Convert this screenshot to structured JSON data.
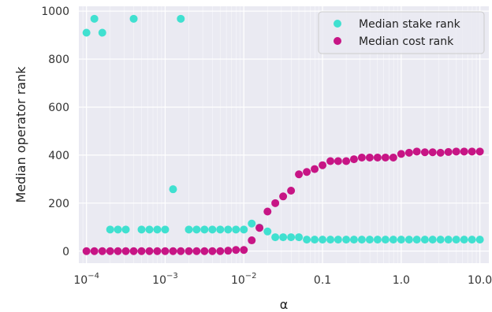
{
  "chart_data": {
    "type": "scatter",
    "xlabel": "α",
    "ylabel": "Median operator rank",
    "x_scale": "log",
    "xlim": [
      8e-05,
      13
    ],
    "ylim": [
      -50,
      1020
    ],
    "grid": true,
    "legend_position": "top-right",
    "x_ticks": [
      {
        "value": 0.0001,
        "base": "10",
        "exp": "−4"
      },
      {
        "value": 0.001,
        "base": "10",
        "exp": "−3"
      },
      {
        "value": 0.01,
        "base": "10",
        "exp": "−2"
      },
      {
        "value": 0.1,
        "text": "0.1"
      },
      {
        "value": 1,
        "text": "1.0"
      },
      {
        "value": 10,
        "text": "10.0"
      }
    ],
    "y_ticks": [
      {
        "value": 0,
        "text": "0"
      },
      {
        "value": 200,
        "text": "200"
      },
      {
        "value": 400,
        "text": "400"
      },
      {
        "value": 600,
        "text": "600"
      },
      {
        "value": 800,
        "text": "800"
      },
      {
        "value": 1000,
        "text": "1000"
      }
    ],
    "series": [
      {
        "name": "Median stake rank",
        "color": "#40e0d0",
        "points": [
          [
            0.0001,
            910
          ],
          [
            0.000126,
            968
          ],
          [
            0.000159,
            910
          ],
          [
            0.0002,
            90
          ],
          [
            0.000251,
            90
          ],
          [
            0.000316,
            90
          ],
          [
            0.000398,
            968
          ],
          [
            0.000501,
            90
          ],
          [
            0.000631,
            90
          ],
          [
            0.000794,
            90
          ],
          [
            0.001,
            90
          ],
          [
            0.00126,
            258
          ],
          [
            0.00158,
            968
          ],
          [
            0.002,
            90
          ],
          [
            0.00251,
            90
          ],
          [
            0.00316,
            90
          ],
          [
            0.00398,
            90
          ],
          [
            0.00501,
            90
          ],
          [
            0.00631,
            90
          ],
          [
            0.00794,
            90
          ],
          [
            0.01,
            90
          ],
          [
            0.0126,
            115
          ],
          [
            0.0158,
            98
          ],
          [
            0.02,
            82
          ],
          [
            0.0251,
            58
          ],
          [
            0.0316,
            58
          ],
          [
            0.0398,
            58
          ],
          [
            0.0501,
            58
          ],
          [
            0.0631,
            48
          ],
          [
            0.0794,
            48
          ],
          [
            0.1,
            48
          ],
          [
            0.126,
            48
          ],
          [
            0.158,
            48
          ],
          [
            0.2,
            48
          ],
          [
            0.251,
            48
          ],
          [
            0.316,
            48
          ],
          [
            0.398,
            48
          ],
          [
            0.501,
            48
          ],
          [
            0.631,
            48
          ],
          [
            0.794,
            48
          ],
          [
            1.0,
            48
          ],
          [
            1.26,
            48
          ],
          [
            1.58,
            48
          ],
          [
            2.0,
            48
          ],
          [
            2.51,
            48
          ],
          [
            3.16,
            48
          ],
          [
            3.98,
            48
          ],
          [
            5.01,
            48
          ],
          [
            6.31,
            48
          ],
          [
            7.94,
            48
          ],
          [
            10.0,
            48
          ]
        ]
      },
      {
        "name": "Median cost rank",
        "color": "#c71585",
        "points": [
          [
            0.0001,
            0
          ],
          [
            0.000126,
            0
          ],
          [
            0.000159,
            0
          ],
          [
            0.0002,
            0
          ],
          [
            0.000251,
            0
          ],
          [
            0.000316,
            0
          ],
          [
            0.000398,
            0
          ],
          [
            0.000501,
            0
          ],
          [
            0.000631,
            0
          ],
          [
            0.000794,
            0
          ],
          [
            0.001,
            0
          ],
          [
            0.00126,
            0
          ],
          [
            0.00158,
            0
          ],
          [
            0.002,
            0
          ],
          [
            0.00251,
            0
          ],
          [
            0.00316,
            0
          ],
          [
            0.00398,
            0
          ],
          [
            0.00501,
            0
          ],
          [
            0.00631,
            2
          ],
          [
            0.00794,
            5
          ],
          [
            0.01,
            5
          ],
          [
            0.0126,
            45
          ],
          [
            0.0158,
            97
          ],
          [
            0.02,
            165
          ],
          [
            0.0251,
            200
          ],
          [
            0.0316,
            228
          ],
          [
            0.0398,
            252
          ],
          [
            0.0501,
            320
          ],
          [
            0.0631,
            330
          ],
          [
            0.0794,
            342
          ],
          [
            0.1,
            358
          ],
          [
            0.126,
            375
          ],
          [
            0.158,
            375
          ],
          [
            0.2,
            375
          ],
          [
            0.251,
            383
          ],
          [
            0.316,
            390
          ],
          [
            0.398,
            390
          ],
          [
            0.501,
            390
          ],
          [
            0.631,
            390
          ],
          [
            0.794,
            390
          ],
          [
            1.0,
            405
          ],
          [
            1.26,
            410
          ],
          [
            1.58,
            415
          ],
          [
            2.0,
            412
          ],
          [
            2.51,
            412
          ],
          [
            3.16,
            410
          ],
          [
            3.98,
            413
          ],
          [
            5.01,
            415
          ],
          [
            6.31,
            415
          ],
          [
            7.94,
            415
          ],
          [
            10.0,
            415
          ]
        ]
      }
    ]
  }
}
